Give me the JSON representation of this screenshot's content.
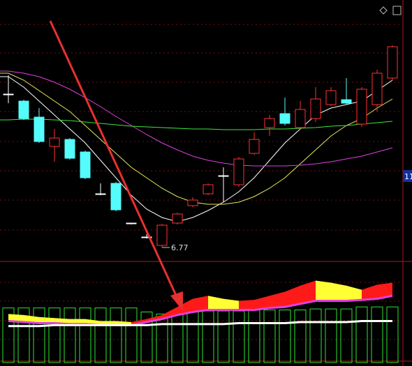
{
  "chart_data": [
    {
      "type": "candlestick",
      "open": [
        11.17,
        10.97,
        10.51,
        9.67,
        9.87,
        9.51,
        8.31,
        8.61,
        7.47,
        7.07,
        6.83,
        7.47,
        7.97,
        8.31,
        8.83,
        8.57,
        9.47,
        10.21,
        10.61,
        10.21,
        10.47,
        10.87,
        11.01,
        10.31,
        10.87,
        11.63
      ],
      "high": [
        11.71,
        11.01,
        10.77,
        10.17,
        9.91,
        9.55,
        8.61,
        8.65,
        7.47,
        7.15,
        7.45,
        7.77,
        8.21,
        8.61,
        9.07,
        9.37,
        10.07,
        10.57,
        11.07,
        10.97,
        11.37,
        11.37,
        11.63,
        11.37,
        11.87,
        12.57
      ],
      "low": [
        10.91,
        10.43,
        9.77,
        9.23,
        9.29,
        8.73,
        8.27,
        7.81,
        7.43,
        7.03,
        6.77,
        7.43,
        7.93,
        8.27,
        8.07,
        8.51,
        9.43,
        9.97,
        10.27,
        10.17,
        10.37,
        10.83,
        10.87,
        10.23,
        10.67,
        11.57
      ],
      "close": [
        11.17,
        10.47,
        9.81,
        9.91,
        9.33,
        8.77,
        8.31,
        7.85,
        7.47,
        7.07,
        7.41,
        7.73,
        8.13,
        8.57,
        8.83,
        9.31,
        9.87,
        10.47,
        10.33,
        10.73,
        11.03,
        11.27,
        10.91,
        11.31,
        11.77,
        12.53
      ],
      "up_color": "#ff3232",
      "down_color": "#54fcfc",
      "flat_color": "#ffffff",
      "lines": [
        {
          "color": "#ffffff",
          "values": [
            11.67,
            11.37,
            10.97,
            10.57,
            10.17,
            9.77,
            9.27,
            8.77,
            8.27,
            7.87,
            7.63,
            7.51,
            7.63,
            7.83,
            8.07,
            8.37,
            8.77,
            9.27,
            9.77,
            10.17,
            10.57,
            10.77,
            10.87,
            10.97,
            11.27,
            11.57
          ]
        },
        {
          "color": "#e8e85a",
          "values": [
            11.77,
            11.57,
            11.27,
            10.97,
            10.67,
            10.27,
            9.87,
            9.47,
            9.07,
            8.77,
            8.47,
            8.23,
            8.07,
            8.01,
            8.01,
            8.07,
            8.23,
            8.47,
            8.77,
            9.17,
            9.57,
            9.97,
            10.27,
            10.47,
            10.77,
            11.03
          ]
        },
        {
          "color": "#e040e0",
          "values": [
            11.83,
            11.77,
            11.67,
            11.51,
            11.31,
            11.07,
            10.81,
            10.53,
            10.27,
            10.01,
            9.77,
            9.57,
            9.39,
            9.27,
            9.19,
            9.13,
            9.11,
            9.11,
            9.11,
            9.13,
            9.17,
            9.23,
            9.31,
            9.39,
            9.51,
            9.63
          ]
        },
        {
          "color": "#3ce83c",
          "values": [
            10.43,
            10.45,
            10.45,
            10.43,
            10.41,
            10.37,
            10.33,
            10.29,
            10.25,
            10.23,
            10.21,
            10.19,
            10.17,
            10.17,
            10.15,
            10.15,
            10.15,
            10.17,
            10.17,
            10.19,
            10.21,
            10.25,
            10.27,
            10.31,
            10.35,
            10.39
          ]
        }
      ],
      "ylim": [
        6.37,
        13.87
      ],
      "low_label": 6.77,
      "price_marker": "11"
    },
    {
      "type": "indicator",
      "values": [
        54,
        54,
        54,
        54,
        54,
        54,
        54,
        54,
        54,
        50,
        48,
        50,
        50,
        51,
        51,
        51,
        52,
        52,
        52,
        52,
        53,
        53,
        53,
        55,
        55,
        55
      ],
      "color": "#2ee62e",
      "line": {
        "color": "#ffffff",
        "values": [
          36,
          36,
          36,
          37,
          37,
          37,
          37,
          37,
          37,
          37,
          38,
          38,
          38,
          38,
          38,
          39,
          39,
          39,
          39,
          40,
          40,
          40,
          40,
          41,
          41,
          41
        ]
      },
      "band": {
        "upper": [
          48,
          47,
          45,
          44,
          43,
          43,
          41,
          41,
          40,
          43,
          47,
          55,
          63,
          66,
          63,
          61,
          62,
          66,
          70,
          76,
          81,
          79,
          76,
          72,
          77,
          79
        ],
        "lower": [
          41,
          40,
          39,
          39,
          38,
          38,
          37,
          37,
          37,
          40,
          43,
          47,
          50,
          52,
          52,
          52,
          52,
          54,
          55,
          58,
          61,
          61,
          61,
          62,
          63,
          66
        ],
        "rise_color": "#ff1a1a",
        "fall_color": "#ffff33",
        "edge_color": "#e040e0"
      },
      "ylim": [
        0,
        100
      ]
    }
  ]
}
